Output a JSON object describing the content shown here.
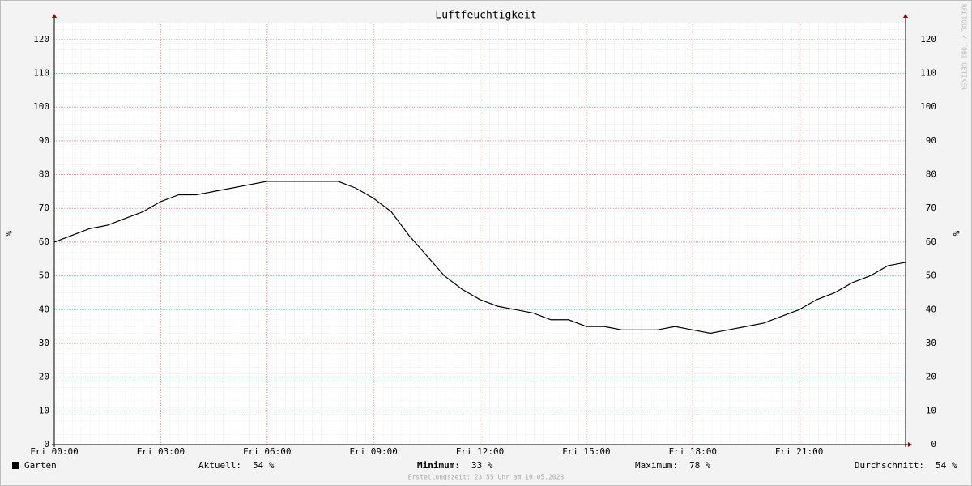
{
  "chart_data": {
    "type": "line",
    "title": "Luftfeuchtigkeit",
    "y_label": "%",
    "y2_label": "%",
    "watermark": "RRDTOOL / TOBI OETIKER",
    "x": [
      0,
      0.5,
      1,
      1.5,
      2,
      2.5,
      3,
      3.5,
      4,
      4.5,
      5,
      5.5,
      6,
      6.5,
      7,
      7.5,
      8,
      8.5,
      9,
      9.5,
      10,
      10.5,
      11,
      11.5,
      12,
      12.5,
      13,
      13.5,
      14,
      14.5,
      15,
      15.5,
      16,
      16.5,
      17,
      17.5,
      18,
      18.5,
      19,
      19.5,
      20,
      20.5,
      21,
      21.5,
      22,
      22.5,
      23,
      23.5,
      24
    ],
    "series": [
      {
        "name": "Garten",
        "color": "#000000",
        "values": [
          60,
          62,
          64,
          65,
          67,
          69,
          72,
          74,
          74,
          75,
          76,
          77,
          78,
          78,
          78,
          78,
          78,
          76,
          73,
          69,
          62,
          56,
          50,
          46,
          43,
          41,
          40,
          39,
          37,
          37,
          35,
          35,
          34,
          34,
          34,
          35,
          34,
          33,
          34,
          35,
          36,
          38,
          40,
          43,
          45,
          48,
          50,
          53,
          54
        ]
      }
    ],
    "xlim": [
      0,
      24
    ],
    "xticks": [
      {
        "value": 0,
        "label": "Fri 00:00"
      },
      {
        "value": 3,
        "label": "Fri 03:00"
      },
      {
        "value": 6,
        "label": "Fri 06:00"
      },
      {
        "value": 9,
        "label": "Fri 09:00"
      },
      {
        "value": 12,
        "label": "Fri 12:00"
      },
      {
        "value": 15,
        "label": "Fri 15:00"
      },
      {
        "value": 18,
        "label": "Fri 18:00"
      },
      {
        "value": 21,
        "label": "Fri 21:00"
      }
    ],
    "ylim": [
      0,
      125
    ],
    "yticks": [
      0,
      10,
      20,
      30,
      40,
      50,
      60,
      70,
      80,
      90,
      100,
      110,
      120
    ],
    "grid": true,
    "stats": [
      {
        "label": "Aktuell:",
        "text": "54 %"
      },
      {
        "label": "Minimum:",
        "text": "33 %"
      },
      {
        "label": "Maximum:",
        "text": "78 %"
      },
      {
        "label": "Durchschnitt:",
        "text": "54 %"
      }
    ],
    "footer": "Erstellungszeit: 23:55 Uhr am 19.05.2023"
  }
}
